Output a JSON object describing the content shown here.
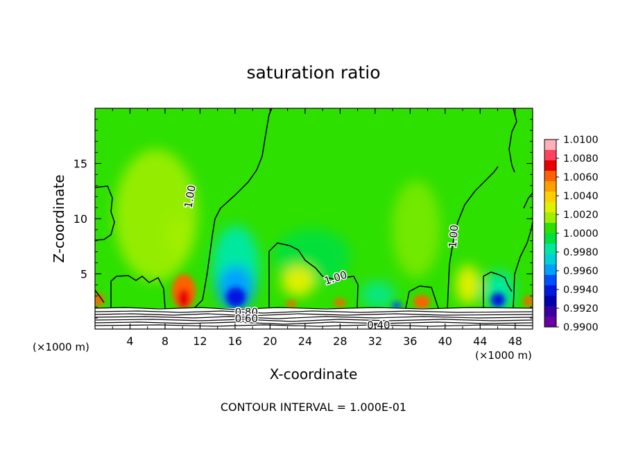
{
  "chart_data": {
    "type": "heatmap",
    "title": "saturation ratio",
    "xlabel": "X-coordinate",
    "ylabel": "Z-coordinate",
    "x_unit_left": "(×1000 m)",
    "x_unit_right": "(×1000 m)",
    "footer": "CONTOUR INTERVAL = 1.000E-01",
    "xlim": [
      0,
      50
    ],
    "ylim": [
      0,
      20
    ],
    "x_ticks": [
      4,
      8,
      12,
      16,
      20,
      24,
      28,
      32,
      36,
      40,
      44,
      48
    ],
    "x_tick_labels": [
      "4",
      "8",
      "12",
      "16",
      "20",
      "24",
      "28",
      "32",
      "36",
      "40",
      "44",
      "48"
    ],
    "y_ticks": [
      5,
      10,
      15
    ],
    "y_tick_labels": [
      "5",
      "10",
      "15"
    ],
    "colorbar": {
      "min": 0.99,
      "max": 1.01,
      "labels": [
        "1.0100",
        "1.0080",
        "1.0060",
        "1.0040",
        "1.0020",
        "1.0000",
        "0.9980",
        "0.9960",
        "0.9940",
        "0.9920",
        "0.9900"
      ],
      "colors": [
        "#ffb0b8",
        "#ff4060",
        "#e80000",
        "#ff6000",
        "#ffa000",
        "#ffd000",
        "#e0f000",
        "#a0ee00",
        "#2ee000",
        "#00e040",
        "#00e8a0",
        "#00d0d8",
        "#00a0ff",
        "#0050ff",
        "#0018e0",
        "#0000b0",
        "#3800a0",
        "#6800a0"
      ]
    },
    "contour_labels": [
      {
        "text": "1.00",
        "x": 10.9,
        "z": 12.0,
        "angle": -80
      },
      {
        "text": "1.00",
        "x": 27.5,
        "z": 4.6,
        "angle": -18
      },
      {
        "text": "1.00",
        "x": 41.0,
        "z": 8.4,
        "angle": -85
      },
      {
        "text": "0.80",
        "x": 17.3,
        "z": 1.5,
        "angle": 0
      },
      {
        "text": "0.60",
        "x": 17.3,
        "z": 0.9,
        "angle": 0
      },
      {
        "text": "0.40",
        "x": 32.4,
        "z": 0.3,
        "angle": 0
      }
    ]
  }
}
